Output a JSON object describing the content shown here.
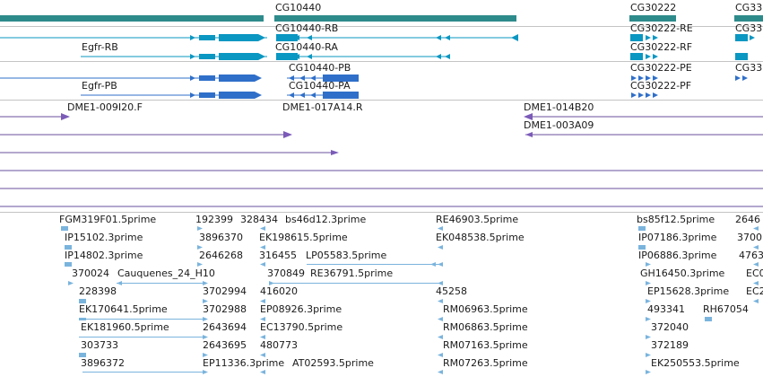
{
  "viewer": {
    "colors": {
      "gene": "#2e8b8b",
      "transcript_cyan": "#0a97c2",
      "transcript_blue": "#2f6fc9",
      "clone": "#7b5bb8",
      "clone_line": "#6a4f9e",
      "est": "#7ab4dd",
      "divider": "#c4c4c4"
    }
  },
  "gene_track": {
    "genes": [
      {
        "name": "CG10440"
      },
      {
        "name": "CG30222"
      },
      {
        "name": "CG33"
      }
    ]
  },
  "transcripts_a": {
    "labels": [
      "CG10440-RB",
      "CG10440-RA",
      "CG30222-RE",
      "CG30222-RF",
      "CG33",
      "Egfr-RB"
    ]
  },
  "transcripts_b": {
    "labels": [
      "CG10440-PB",
      "CG10440-PA",
      "CG30222-PE",
      "CG30222-PF",
      "CG33",
      "Egfr-PB"
    ]
  },
  "clone_track": {
    "labels": [
      "DME1-009I20.F",
      "DME1-017A14.R",
      "DME1-014B20",
      "DME1-003A09"
    ]
  },
  "est_track": {
    "labels": [
      "FGM319F01.5prime",
      "192399",
      "328434",
      "bs46d12.3prime",
      "RE46903.5prime",
      "bs85f12.5prime",
      "2646",
      "IP15102.3prime",
      "3896370",
      "EK198615.5prime",
      "EK048538.5prime",
      "IP07186.3prime",
      "3700",
      "IP14802.3prime",
      "2646268",
      "316455",
      "LP05583.5prime",
      "IP06886.3prime",
      "4763",
      "370024",
      "Cauquenes_24_H10",
      "370849",
      "RE36791.5prime",
      "GH16450.3prime",
      "EC0",
      "228398",
      "3702994",
      "416020",
      "45258",
      "EP15628.3prime",
      "EC2",
      "EK170641.5prime",
      "3702988",
      "EP08926.3prime",
      "RM06963.5prime",
      "493341",
      "RH67054",
      "EK181960.5prime",
      "2643694",
      "EC13790.5prime",
      "RM06863.5prime",
      "372040",
      "303733",
      "2643695",
      "480773",
      "RM07163.5prime",
      "372189",
      "3896372",
      "EP11336.3prime",
      "AT02593.5prime",
      "RM07263.5prime",
      "EK250553.5prime"
    ]
  }
}
